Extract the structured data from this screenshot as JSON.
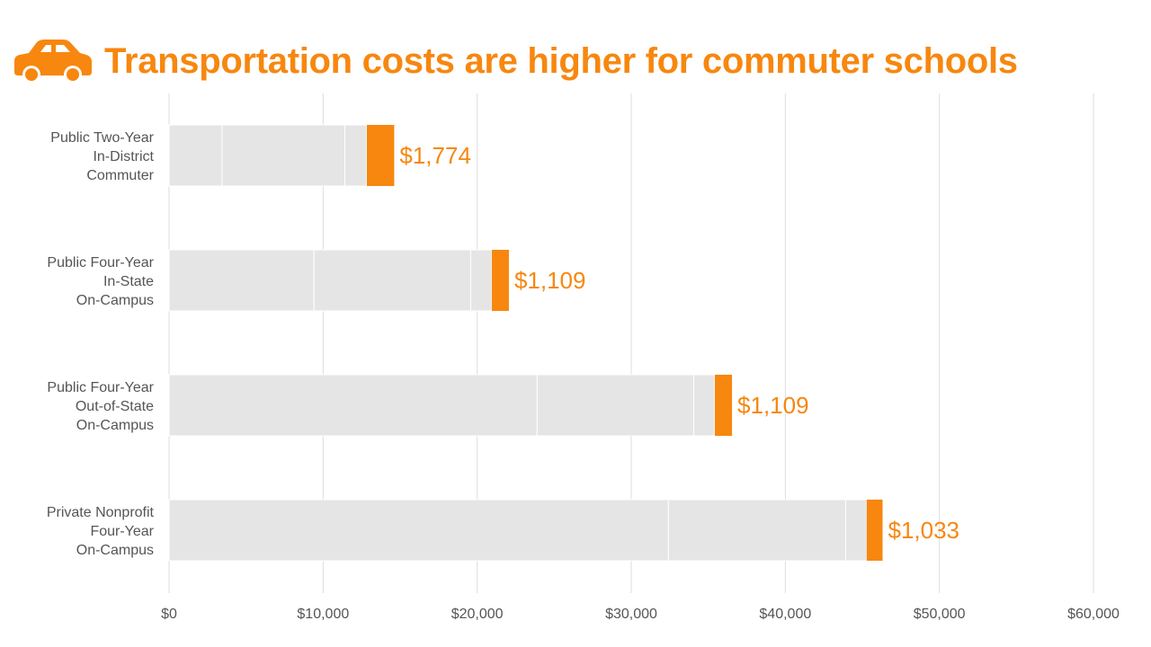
{
  "title": "Transportation costs are higher for commuter schools",
  "icon": "car-icon",
  "colors": {
    "accent": "#f7870f",
    "segment": "#e5e5e5",
    "grid": "#dddddd",
    "text": "#555555"
  },
  "chart_data": {
    "type": "bar",
    "orientation": "horizontal",
    "stacked": true,
    "title": "Transportation costs are higher for commuter schools",
    "xlabel": "",
    "ylabel": "",
    "xlim": [
      0,
      60000
    ],
    "x_ticks": [
      0,
      10000,
      20000,
      30000,
      40000,
      50000,
      60000
    ],
    "x_tick_labels": [
      "$0",
      "$10,000",
      "$20,000",
      "$30,000",
      "$40,000",
      "$50,000",
      "$60,000"
    ],
    "grid": true,
    "legend": "none",
    "categories": [
      [
        "Public Two-Year",
        "In-District",
        "Commuter"
      ],
      [
        "Public Four-Year",
        "In-State",
        "On-Campus"
      ],
      [
        "Public Four-Year",
        "Out-of-State",
        "On-Campus"
      ],
      [
        "Private Nonprofit",
        "Four-Year",
        "On-Campus"
      ]
    ],
    "segments": [
      [
        3440,
        7970,
        1430,
        1774
      ],
      [
        9410,
        10170,
        1370,
        1109
      ],
      [
        23890,
        10170,
        1370,
        1109
      ],
      [
        32410,
        11510,
        1360,
        1033
      ]
    ],
    "highlight_segment_index": 3,
    "value_labels": [
      "$1,774",
      "$1,109",
      "$1,109",
      "$1,033"
    ]
  }
}
